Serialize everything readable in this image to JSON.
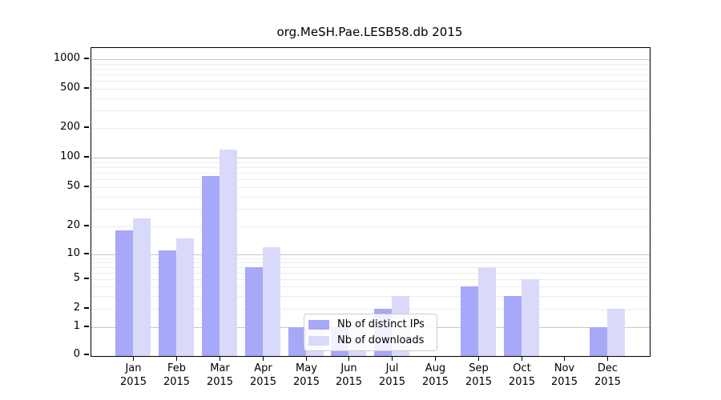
{
  "figure": {
    "title": "org.MeSH.Pae.LESB58.db 2015"
  },
  "colors": {
    "distinct_ips_bar": "#a7a8f8",
    "downloads_bar": "#d9dafa",
    "major_gridline": "#c6c6c6",
    "minor_gridline": "#ececec"
  },
  "chart_data": {
    "type": "bar",
    "title": "org.MeSH.Pae.LESB58.db 2015",
    "categories": [
      "Jan 2015",
      "Feb 2015",
      "Mar 2015",
      "Apr 2015",
      "May 2015",
      "Jun 2015",
      "Jul 2015",
      "Aug 2015",
      "Sep 2015",
      "Oct 2015",
      "Nov 2015",
      "Dec 2015"
    ],
    "series": [
      {
        "name": "Nb of distinct IPs",
        "color": "#a7a8f8",
        "values": [
          18,
          11,
          65,
          7,
          1,
          1,
          2,
          0,
          4,
          3,
          0,
          1
        ]
      },
      {
        "name": "Nb of downloads",
        "color": "#d9dafa",
        "values": [
          24,
          15,
          120,
          12,
          1,
          1,
          3,
          0,
          7,
          5,
          0,
          2
        ]
      }
    ],
    "xlabel": "",
    "ylabel": "",
    "yscale": "log-like (0 baseline, log decades above 1)",
    "y_ticks": [
      0,
      1,
      2,
      5,
      10,
      20,
      50,
      100,
      200,
      500,
      1000
    ],
    "ylim": [
      0,
      1300
    ],
    "grid": "horizontal, light minor lines at 2-9 per decade, darker lines at decades",
    "legend_position": "inside plot, lower-center-left"
  }
}
